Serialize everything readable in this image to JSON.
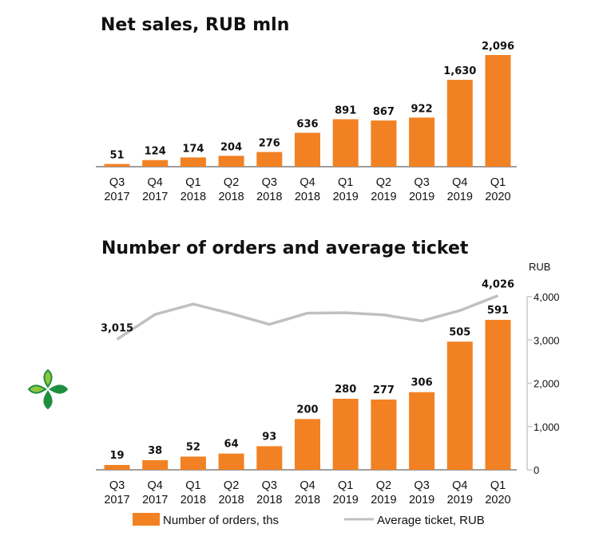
{
  "chart_data": [
    {
      "type": "bar",
      "title": "Net sales, RUB mln",
      "categories": [
        "Q3 2017",
        "Q4 2017",
        "Q1 2018",
        "Q2 2018",
        "Q3 2018",
        "Q4 2018",
        "Q1 2019",
        "Q2 2019",
        "Q3 2019",
        "Q4 2019",
        "Q1 2020"
      ],
      "category_lines": [
        [
          "Q3",
          "2017"
        ],
        [
          "Q4",
          "2017"
        ],
        [
          "Q1",
          "2018"
        ],
        [
          "Q2",
          "2018"
        ],
        [
          "Q3",
          "2018"
        ],
        [
          "Q4",
          "2018"
        ],
        [
          "Q1",
          "2019"
        ],
        [
          "Q2",
          "2019"
        ],
        [
          "Q3",
          "2019"
        ],
        [
          "Q4",
          "2019"
        ],
        [
          "Q1",
          "2020"
        ]
      ],
      "values": [
        51,
        124,
        174,
        204,
        276,
        636,
        891,
        867,
        922,
        1630,
        2096
      ],
      "value_labels": [
        "51",
        "124",
        "174",
        "204",
        "276",
        "636",
        "891",
        "867",
        "922",
        "1,630",
        "2,096"
      ],
      "color": "#F28123",
      "xlabel": "",
      "ylabel": "",
      "ylim": [
        0,
        2096
      ],
      "grid": false,
      "legend": "none"
    },
    {
      "type": "bar",
      "title": "Number of orders and average ticket",
      "categories": [
        "Q3 2017",
        "Q4 2017",
        "Q1 2018",
        "Q2 2018",
        "Q3 2018",
        "Q4 2018",
        "Q1 2019",
        "Q2 2019",
        "Q3 2019",
        "Q4 2019",
        "Q1 2020"
      ],
      "category_lines": [
        [
          "Q3",
          "2017"
        ],
        [
          "Q4",
          "2017"
        ],
        [
          "Q1",
          "2018"
        ],
        [
          "Q2",
          "2018"
        ],
        [
          "Q3",
          "2018"
        ],
        [
          "Q4",
          "2018"
        ],
        [
          "Q1",
          "2019"
        ],
        [
          "Q2",
          "2019"
        ],
        [
          "Q3",
          "2019"
        ],
        [
          "Q4",
          "2019"
        ],
        [
          "Q1",
          "2020"
        ]
      ],
      "series": [
        {
          "name": "Number of orders, ths",
          "kind": "bar",
          "axis": "left",
          "color": "#F28123",
          "values": [
            19,
            38,
            52,
            64,
            93,
            200,
            280,
            277,
            306,
            505,
            591
          ],
          "value_labels": [
            "19",
            "38",
            "52",
            "64",
            "93",
            "200",
            "280",
            "277",
            "306",
            "505",
            "591"
          ]
        },
        {
          "name": "Average ticket, RUB",
          "kind": "line",
          "axis": "right",
          "color": "#C0C0C0",
          "values": [
            3015,
            3590,
            3830,
            3610,
            3360,
            3620,
            3630,
            3580,
            3440,
            3680,
            4026
          ],
          "point_labels": {
            "0": "3,015",
            "10": "4,026"
          }
        }
      ],
      "y2label": "RUB",
      "y2lim": [
        0,
        4000
      ],
      "y2ticks": [
        0,
        1000,
        2000,
        3000,
        4000
      ],
      "y2tick_labels": [
        "0",
        "1,000",
        "2,000",
        "3,000",
        "4,000"
      ],
      "grid": false,
      "legend": "bottom"
    }
  ],
  "logo": {
    "name": "company-logo",
    "colors": [
      "#8DC63F",
      "#1E8F3E"
    ]
  }
}
